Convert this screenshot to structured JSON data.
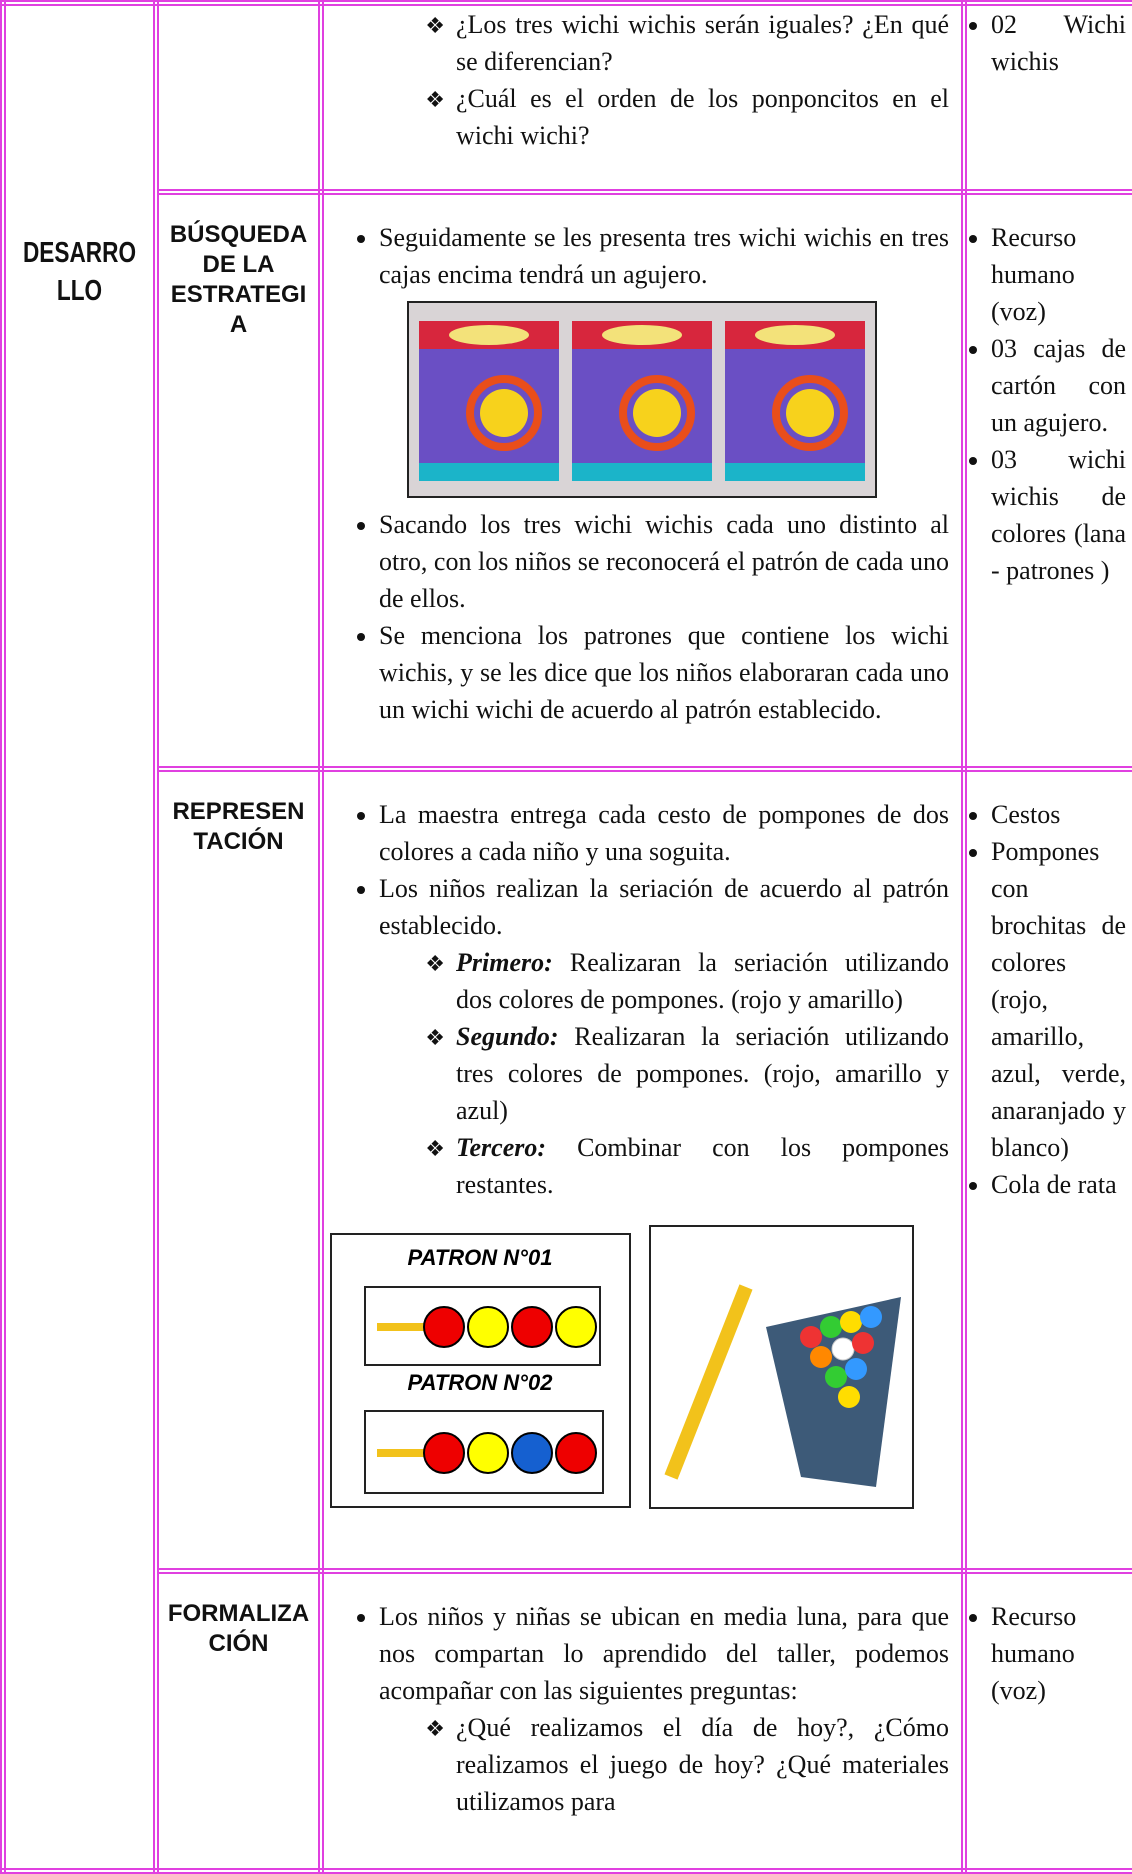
{
  "table": {
    "stage": "DESARROLLO",
    "sections": [
      {
        "questions": [
          "¿Los tres wichi wichis serán iguales? ¿En qué se diferencian?",
          "¿Cuál es el orden de los ponponcitos en el wichi wichi?"
        ],
        "resources": [
          "02 Wichi wichis"
        ]
      },
      {
        "phase": "BÚSQUEDA DE LA ESTRATEGIA",
        "steps": [
          "Seguidamente se les presenta tres wichi wichis en tres cajas encima tendrá un agujero.",
          "Sacando los tres wichi wichis cada uno distinto al otro, con los niños se reconocerá el patrón de cada uno de ellos.",
          "Se menciona los patrones que contiene los wichi wichis, y se les dice que los niños elaboraran cada uno un wichi wichi de acuerdo al patrón establecido."
        ],
        "resources": [
          "Recurso humano (voz)",
          "03 cajas de cartón con un agujero.",
          "03 wichi wichis de colores (lana - patrones )"
        ]
      },
      {
        "phase": "REPRESENTACIÓN",
        "steps": [
          "La maestra entrega cada cesto de pompones de dos colores a cada niño y una soguita.",
          "Los niños realizan la seriación de acuerdo al patrón establecido."
        ],
        "substeps": [
          {
            "lead": "Primero:",
            "text": "Realizaran la seriación utilizando dos colores de pompones. (rojo y amarillo)"
          },
          {
            "lead": "Segundo:",
            "text": "Realizaran la seriación utilizando tres colores de pompones. (rojo, amarillo y azul)"
          },
          {
            "lead": "Tercero:",
            "text": "Combinar con los pompones restantes."
          }
        ],
        "patterns": [
          "PATRON N°01",
          "PATRON N°02"
        ],
        "resources": [
          "Cestos",
          "Pompones con brochitas de colores (rojo, amarillo, azul, verde, anaranjado y blanco)",
          "Cola de rata"
        ]
      },
      {
        "phase": "FORMALIZACIÓN",
        "steps": [
          "Los niños y niñas se ubican en media luna, para que nos compartan lo aprendido del taller, podemos acompañar con las siguientes preguntas:"
        ],
        "questions": [
          "¿Qué realizamos el día de hoy?, ¿Cómo realizamos el juego de hoy? ¿Qué materiales utilizamos para"
        ],
        "resources": [
          "Recurso humano (voz)"
        ]
      }
    ]
  }
}
